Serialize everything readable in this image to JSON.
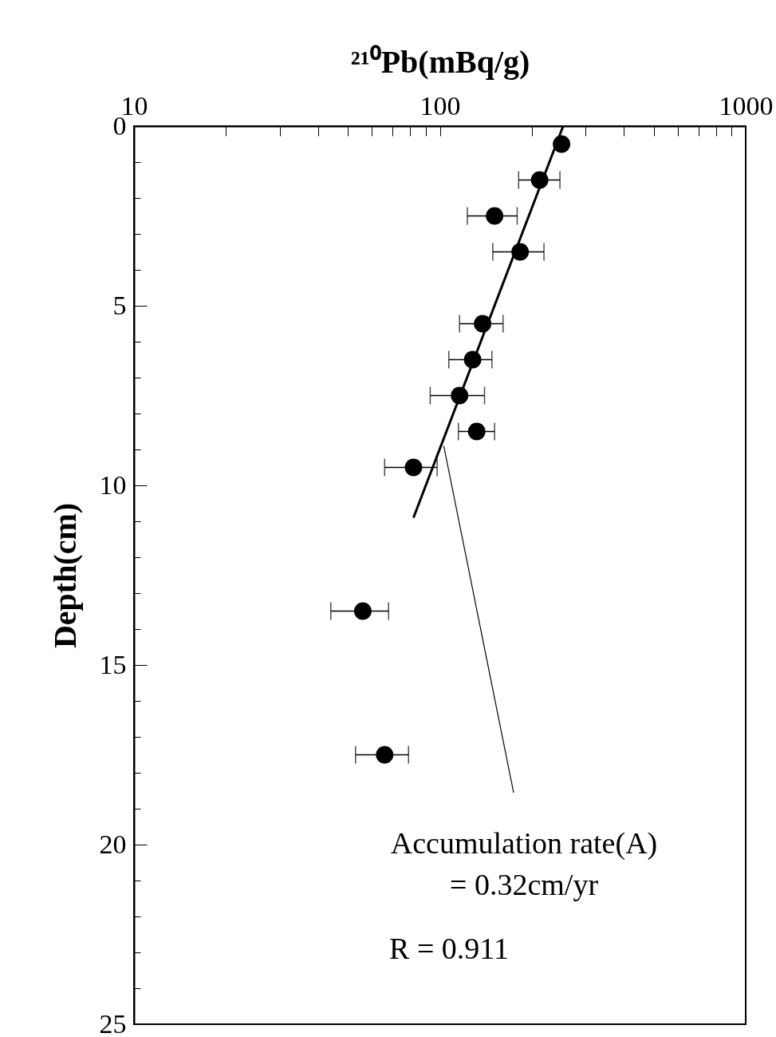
{
  "chart_data": {
    "type": "scatter",
    "xlabel": "²¹⁰Pb(mBq/g)",
    "ylabel": "Depth(cm)",
    "log": "x",
    "xlim": [
      10,
      1000
    ],
    "ylim": [
      25,
      0
    ],
    "xticks": [
      10,
      {
        "value": 20,
        "label": null
      },
      {
        "value": 30,
        "label": null
      },
      {
        "value": 40,
        "label": null
      },
      {
        "value": 50,
        "label": null
      },
      {
        "value": 60,
        "label": null
      },
      {
        "value": 70,
        "label": null
      },
      {
        "value": 80,
        "label": null
      },
      {
        "value": 90,
        "label": null
      },
      100,
      {
        "value": 200,
        "label": null
      },
      {
        "value": 300,
        "label": null
      },
      {
        "value": 400,
        "label": null
      },
      {
        "value": 500,
        "label": null
      },
      {
        "value": 600,
        "label": null
      },
      {
        "value": 700,
        "label": null
      },
      {
        "value": 800,
        "label": null
      },
      {
        "value": 900,
        "label": null
      },
      1000
    ],
    "yticks": [
      0,
      {
        "value": 1,
        "label": null
      },
      {
        "value": 2,
        "label": null
      },
      {
        "value": 3,
        "label": null
      },
      {
        "value": 4,
        "label": null
      },
      5,
      {
        "value": 6,
        "label": null
      },
      {
        "value": 7,
        "label": null
      },
      {
        "value": 8,
        "label": null
      },
      {
        "value": 9,
        "label": null
      },
      10,
      {
        "value": 11,
        "label": null
      },
      {
        "value": 12,
        "label": null
      },
      {
        "value": 13,
        "label": null
      },
      {
        "value": 14,
        "label": null
      },
      15,
      {
        "value": 16,
        "label": null
      },
      {
        "value": 17,
        "label": null
      },
      {
        "value": 18,
        "label": null
      },
      {
        "value": 19,
        "label": null
      },
      20,
      {
        "value": 21,
        "label": null
      },
      {
        "value": 22,
        "label": null
      },
      {
        "value": 23,
        "label": null
      },
      {
        "value": 24,
        "label": null
      },
      25
    ],
    "marker": "circle",
    "grid": false,
    "annotations": [
      {
        "text": "Accumulation rate(A)\n= 0.32cm/yr",
        "x": 103,
        "y": 8.9
      },
      "R = 0.911"
    ],
    "series": [
      {
        "type": "scatter",
        "color": "#000000",
        "x": [
          250,
          212,
          151,
          183,
          138,
          128,
          116,
          132,
          82,
          56,
          66
        ],
        "values": [
          0.5,
          1.5,
          2.5,
          3.5,
          5.5,
          6.5,
          7.5,
          8.5,
          9.5,
          13.5,
          17.5
        ],
        "xerrors": [
          null,
          [
            181,
            247
          ],
          [
            123,
            179
          ],
          [
            149,
            219
          ],
          [
            116,
            161
          ],
          [
            107,
            148
          ],
          [
            93,
            140
          ],
          [
            115,
            151
          ],
          [
            66,
            98
          ],
          [
            44,
            68
          ],
          [
            53,
            79
          ]
        ]
      },
      {
        "type": "line",
        "marker": "none",
        "color": "#000000",
        "x": [
          253,
          82
        ],
        "values": [
          0,
          10.9
        ]
      }
    ]
  }
}
